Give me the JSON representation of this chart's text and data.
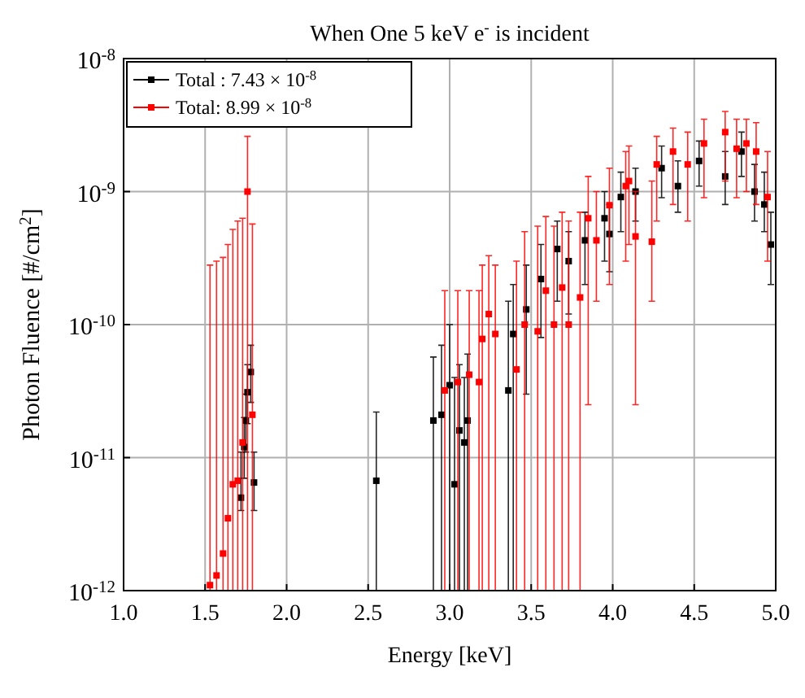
{
  "chart_data": {
    "type": "scatter",
    "title": "When One 5 keV e$^{-}$ is incident",
    "xlabel": "Energy [keV]",
    "ylabel": "Photon Fluence [#/cm$^{2}$]",
    "log": "y",
    "grid": true,
    "legend": "top left",
    "marker": "square",
    "xlim": [
      1.0,
      5.0
    ],
    "xticks": [
      {
        "value": 1,
        "label": "1.0"
      },
      1.5,
      {
        "value": 2,
        "label": "2.0"
      },
      2.5,
      {
        "value": 3,
        "label": "3.0"
      },
      3.5,
      {
        "value": 4,
        "label": "4.0"
      },
      4.5,
      {
        "value": 5,
        "label": "5.0"
      }
    ],
    "ylim": [
      1e-12,
      1e-08
    ],
    "yticks": [
      {
        "value": 1e-12,
        "label": "10$^{-12}$"
      },
      {
        "value": 1e-11,
        "label": "10$^{-11}$"
      },
      {
        "value": 1e-10,
        "label": "10$^{-10}$"
      },
      {
        "value": 1e-09,
        "label": "10$^{-9}$"
      },
      {
        "value": 1e-08,
        "label": "10$^{-8}$"
      }
    ],
    "series": [
      {
        "name": "Total : 7.43 × 10$^{-8}$",
        "color": "#000000",
        "x": [
          1.72,
          1.74,
          1.75,
          1.76,
          1.78,
          1.8,
          2.55,
          2.9,
          2.95,
          3.0,
          3.03,
          3.06,
          3.09,
          3.11,
          3.36,
          3.39,
          3.47,
          3.56,
          3.66,
          3.73,
          3.83,
          3.95,
          3.98,
          4.05,
          4.14,
          4.3,
          4.4,
          4.53,
          4.69,
          4.79,
          4.87,
          4.93,
          4.97
        ],
        "values": [
          5e-12,
          1.2e-11,
          1.9e-11,
          3.1e-11,
          4.4e-11,
          6.5e-12,
          6.7e-12,
          1.9e-11,
          2.1e-11,
          3.5e-11,
          6.3e-12,
          1.6e-11,
          1.3e-11,
          1.9e-11,
          3.2e-11,
          8.5e-11,
          1.3e-10,
          2.2e-10,
          3.7e-10,
          3e-10,
          4.3e-10,
          6.3e-10,
          4.8e-10,
          9.1e-10,
          1e-09,
          1.5e-09,
          1.1e-09,
          1.7e-09,
          1.3e-09,
          2e-09,
          1e-09,
          8e-10,
          4e-10
        ],
        "errors": [
          [
            4e-12,
            1.1e-11
          ],
          [
            7e-12,
            2e-11
          ],
          [
            1.1e-11,
            3e-11
          ],
          [
            1.8e-11,
            5e-11
          ],
          [
            2.6e-11,
            7e-11
          ],
          [
            4e-12,
            1.1e-11
          ],
          [
            1e-12,
            2.2e-11
          ],
          [
            1e-12,
            5.7e-11
          ],
          [
            1e-12,
            7e-11
          ],
          [
            1e-12,
            1e-10
          ],
          [
            1e-12,
            4e-11
          ],
          [
            1e-12,
            5e-11
          ],
          [
            1e-12,
            4e-11
          ],
          [
            1e-12,
            6e-11
          ],
          [
            1e-12,
            1.5e-10
          ],
          [
            1e-12,
            2e-10
          ],
          [
            3e-11,
            2.8e-10
          ],
          [
            8e-11,
            4e-10
          ],
          [
            1.5e-10,
            6e-10
          ],
          [
            1.2e-10,
            5e-10
          ],
          [
            2e-10,
            7e-10
          ],
          [
            3e-10,
            1e-09
          ],
          [
            2.5e-10,
            8e-10
          ],
          [
            5e-10,
            1.4e-09
          ],
          [
            6e-10,
            1.5e-09
          ],
          [
            9e-10,
            2.2e-09
          ],
          [
            7e-10,
            1.7e-09
          ],
          [
            1.1e-09,
            2.4e-09
          ],
          [
            8e-10,
            2e-09
          ],
          [
            1.3e-09,
            2.8e-09
          ],
          [
            6e-10,
            1.6e-09
          ],
          [
            5e-10,
            1.4e-09
          ],
          [
            2e-10,
            7e-10
          ]
        ]
      },
      {
        "name": "Total: 8.99 × 10$^{-8}$",
        "color": "#ff0000",
        "x": [
          1.53,
          1.57,
          1.61,
          1.64,
          1.67,
          1.7,
          1.73,
          1.76,
          1.79,
          2.97,
          3.05,
          3.12,
          3.18,
          3.2,
          3.24,
          3.28,
          3.41,
          3.46,
          3.54,
          3.59,
          3.64,
          3.69,
          3.73,
          3.8,
          3.85,
          3.9,
          3.98,
          4.08,
          4.1,
          4.14,
          4.24,
          4.27,
          4.37,
          4.46,
          4.56,
          4.69,
          4.76,
          4.82,
          4.88,
          4.95
        ],
        "values": [
          1.1e-12,
          1.3e-12,
          1.9e-12,
          3.5e-12,
          6.3e-12,
          6.7e-12,
          1.3e-11,
          1e-09,
          2.1e-11,
          3.2e-11,
          3.7e-11,
          4.2e-11,
          3.7e-11,
          7.8e-11,
          1.2e-10,
          8.5e-11,
          4.6e-11,
          1e-10,
          8.9e-11,
          1.8e-10,
          1e-10,
          1.9e-10,
          1e-10,
          1.6e-10,
          6.3e-10,
          4.3e-10,
          7.9e-10,
          1.1e-09,
          1.2e-09,
          4.6e-10,
          4.2e-10,
          1.6e-09,
          2e-09,
          1.6e-09,
          2.3e-09,
          2.8e-09,
          2.1e-09,
          2.3e-09,
          2e-09,
          9.1e-10
        ],
        "errors": [
          [
            1e-12,
            2.8e-10
          ],
          [
            1e-12,
            3e-10
          ],
          [
            1e-12,
            3.2e-10
          ],
          [
            1e-12,
            4e-10
          ],
          [
            1e-12,
            5.2e-10
          ],
          [
            1e-12,
            6e-10
          ],
          [
            1e-12,
            6.3e-10
          ],
          [
            1e-12,
            2.6e-09
          ],
          [
            1e-12,
            5.7e-10
          ],
          [
            1e-12,
            1.8e-10
          ],
          [
            1e-12,
            1.8e-10
          ],
          [
            1e-12,
            1.8e-10
          ],
          [
            1e-12,
            1.8e-10
          ],
          [
            1e-12,
            2.8e-10
          ],
          [
            1e-12,
            3.3e-10
          ],
          [
            1e-12,
            2.8e-10
          ],
          [
            1e-12,
            3e-10
          ],
          [
            1e-12,
            5e-10
          ],
          [
            1e-12,
            5.5e-10
          ],
          [
            1e-12,
            6.5e-10
          ],
          [
            1e-12,
            5.5e-10
          ],
          [
            1e-12,
            7e-10
          ],
          [
            1e-12,
            6e-10
          ],
          [
            1e-12,
            7e-10
          ],
          [
            2.5e-11,
            1.3e-09
          ],
          [
            1.5e-10,
            1e-09
          ],
          [
            2e-10,
            1.5e-09
          ],
          [
            3e-10,
            2e-09
          ],
          [
            4e-10,
            2.2e-09
          ],
          [
            2.5e-11,
            1e-09
          ],
          [
            1.5e-10,
            1.2e-09
          ],
          [
            6e-10,
            2.6e-09
          ],
          [
            8e-10,
            3e-09
          ],
          [
            6e-10,
            2.8e-09
          ],
          [
            9e-10,
            3.5e-09
          ],
          [
            1.2e-09,
            4e-09
          ],
          [
            9e-10,
            3.5e-09
          ],
          [
            1e-09,
            3.5e-09
          ],
          [
            8e-10,
            3.3e-09
          ],
          [
            3e-10,
            2e-09
          ]
        ]
      }
    ]
  }
}
